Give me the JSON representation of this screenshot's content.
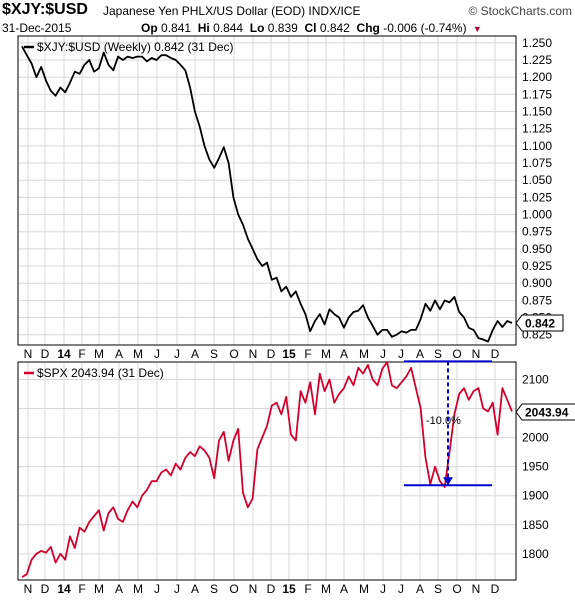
{
  "header": {
    "symbol": "$XJY:$USD",
    "description": "Japanese Yen PHLX/US Dollar (EOD)  INDX/ICE",
    "watermark": "© StockCharts.com",
    "date": "31-Dec-2015",
    "open_label": "Op",
    "open": "0.841",
    "high_label": "Hi",
    "high": "0.844",
    "low_label": "Lo",
    "low": "0.839",
    "close_label": "Cl",
    "close": "0.842",
    "change_label": "Chg",
    "change": "-0.006 (-0.74%)"
  },
  "colors": {
    "yen_line": "#000000",
    "spx_line": "#d3002e",
    "annotation": "#0000cc",
    "grid": "#d8d8d8"
  },
  "chart_data": [
    {
      "type": "line",
      "legend": "$XJY:$USD (Weekly) 0.842 (31 Dec)",
      "last_value_label": "0.842",
      "ylim": [
        0.81,
        1.26
      ],
      "y_ticks": [
        "1.250",
        "1.225",
        "1.200",
        "1.175",
        "1.150",
        "1.125",
        "1.100",
        "1.075",
        "1.050",
        "1.025",
        "1.000",
        "0.975",
        "0.950",
        "0.925",
        "0.900",
        "0.875",
        "0.850",
        "0.825"
      ],
      "x_ticks": [
        "N",
        "D",
        "14",
        "F",
        "M",
        "A",
        "M",
        "J",
        "J",
        "A",
        "S",
        "O",
        "N",
        "D",
        "15",
        "F",
        "M",
        "A",
        "M",
        "J",
        "J",
        "A",
        "S",
        "O",
        "N",
        "D"
      ],
      "series": [
        {
          "values": [
            1.245,
            1.232,
            1.22,
            1.2,
            1.215,
            1.195,
            1.18,
            1.173,
            1.185,
            1.178,
            1.192,
            1.208,
            1.205,
            1.218,
            1.225,
            1.208,
            1.213,
            1.236,
            1.218,
            1.21,
            1.23,
            1.225,
            1.23,
            1.228,
            1.23,
            1.23,
            1.223,
            1.228,
            1.225,
            1.232,
            1.232,
            1.228,
            1.225,
            1.218,
            1.21,
            1.185,
            1.15,
            1.128,
            1.1,
            1.08,
            1.068,
            1.082,
            1.098,
            1.075,
            1.025,
            1.0,
            0.985,
            0.965,
            0.95,
            0.935,
            0.925,
            0.93,
            0.905,
            0.908,
            0.888,
            0.895,
            0.88,
            0.888,
            0.87,
            0.855,
            0.83,
            0.845,
            0.855,
            0.84,
            0.862,
            0.855,
            0.85,
            0.835,
            0.85,
            0.858,
            0.86,
            0.868,
            0.85,
            0.838,
            0.825,
            0.832,
            0.832,
            0.822,
            0.825,
            0.83,
            0.828,
            0.832,
            0.832,
            0.848,
            0.87,
            0.86,
            0.875,
            0.862,
            0.875,
            0.872,
            0.88,
            0.858,
            0.85,
            0.835,
            0.832,
            0.82,
            0.818,
            0.815,
            0.832,
            0.845,
            0.836,
            0.845,
            0.842
          ]
        }
      ]
    },
    {
      "type": "line",
      "legend": "$SPX 2043.94 (31 Dec)",
      "last_value_label": "2043.94",
      "ylim": [
        1755,
        2130
      ],
      "y_ticks": [
        "2100",
        "2050",
        "2000",
        "1950",
        "1900",
        "1850",
        "1800"
      ],
      "x_ticks": [
        "N",
        "D",
        "14",
        "F",
        "M",
        "A",
        "M",
        "J",
        "J",
        "A",
        "S",
        "O",
        "N",
        "D",
        "15",
        "F",
        "M",
        "A",
        "M",
        "J",
        "J",
        "A",
        "S",
        "O",
        "N",
        "D"
      ],
      "annotation": {
        "label": "-10.0%",
        "high": 2131,
        "low": 1918
      },
      "series": [
        {
          "values": [
            1760,
            1765,
            1790,
            1800,
            1805,
            1802,
            1812,
            1785,
            1800,
            1790,
            1830,
            1810,
            1845,
            1838,
            1855,
            1865,
            1875,
            1840,
            1870,
            1880,
            1860,
            1855,
            1875,
            1890,
            1880,
            1900,
            1910,
            1925,
            1925,
            1940,
            1945,
            1935,
            1955,
            1945,
            1965,
            1975,
            1968,
            1985,
            1978,
            1965,
            1930,
            1995,
            2010,
            1960,
            1995,
            2015,
            1905,
            1880,
            1895,
            1980,
            2000,
            2020,
            2055,
            2060,
            2040,
            2070,
            2005,
            1995,
            2080,
            2060,
            2095,
            2040,
            2110,
            2080,
            2100,
            2060,
            2075,
            2085,
            2105,
            2090,
            2120,
            2110,
            2125,
            2100,
            2090,
            2118,
            2130,
            2090,
            2085,
            2095,
            2105,
            2120,
            2085,
            2050,
            1965,
            1920,
            1950,
            1925,
            1915,
            1975,
            2040,
            2075,
            2085,
            2065,
            2080,
            2085,
            2050,
            2045,
            2060,
            2005,
            2085,
            2065,
            2045
          ]
        }
      ]
    }
  ]
}
